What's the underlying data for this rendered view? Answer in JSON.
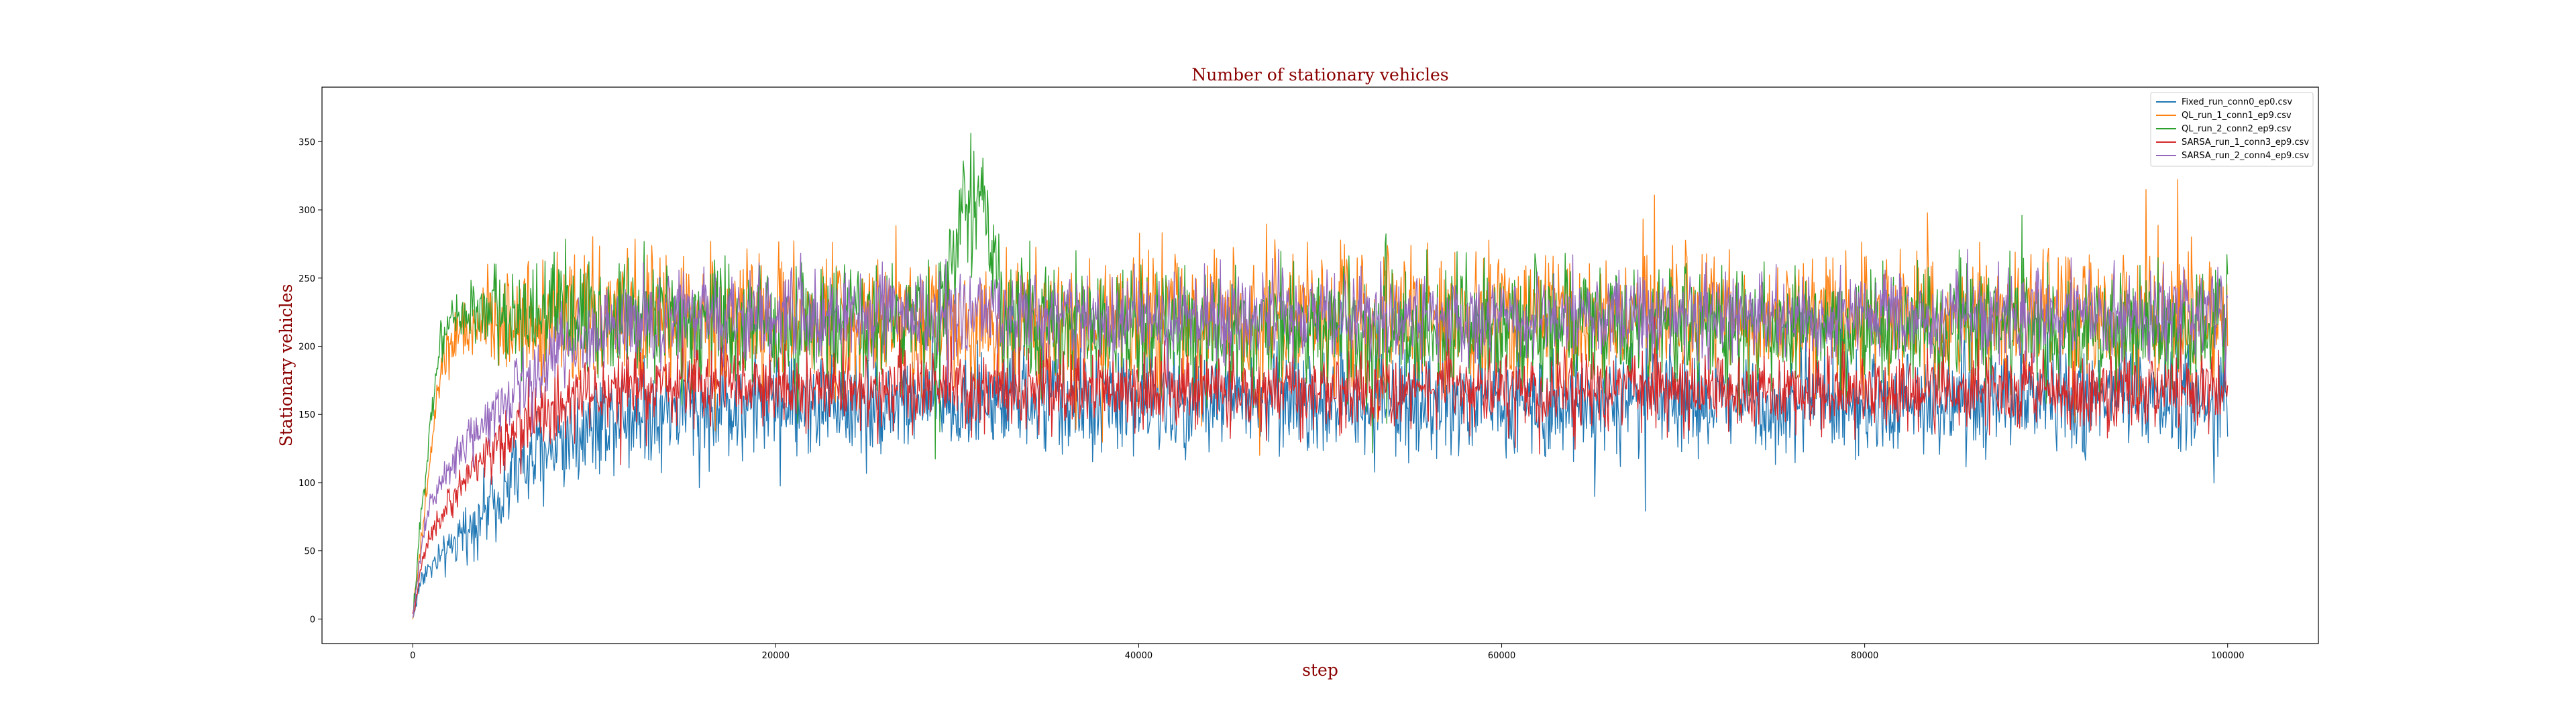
{
  "chart_data": {
    "type": "line",
    "title": "Number of stationary vehicles",
    "xlabel": "step",
    "ylabel": "Stationary vehicles",
    "xlim": [
      -5000,
      105000
    ],
    "ylim": [
      -18,
      390
    ],
    "xticks": [
      0,
      20000,
      40000,
      60000,
      80000,
      100000
    ],
    "yticks": [
      0,
      50,
      100,
      150,
      200,
      250,
      300,
      350
    ],
    "grid": false,
    "legend_position": "top-right",
    "series": [
      {
        "name": "Fixed_run_conn0_ep0.csv",
        "color": "#1f77b4",
        "values": [
          [
            0,
            0
          ],
          [
            500,
            32
          ],
          [
            1000,
            38
          ],
          [
            2000,
            50
          ],
          [
            3000,
            65
          ],
          [
            4000,
            80
          ],
          [
            5000,
            95
          ],
          [
            6000,
            110
          ],
          [
            7000,
            120
          ],
          [
            8000,
            130
          ],
          [
            10000,
            145
          ],
          [
            12000,
            152
          ],
          [
            15000,
            155
          ],
          [
            20000,
            158
          ],
          [
            30000,
            160
          ],
          [
            40000,
            160
          ],
          [
            50000,
            160
          ],
          [
            60000,
            160
          ],
          [
            70000,
            160
          ],
          [
            80000,
            160
          ],
          [
            90000,
            160
          ],
          [
            100000,
            160
          ]
        ],
        "noise": 55
      },
      {
        "name": "QL_run_1_conn1_ep9.csv",
        "color": "#ff7f0e",
        "values": [
          [
            0,
            0
          ],
          [
            500,
            60
          ],
          [
            1000,
            120
          ],
          [
            1500,
            180
          ],
          [
            2000,
            200
          ],
          [
            3000,
            210
          ],
          [
            4000,
            215
          ],
          [
            5000,
            218
          ],
          [
            7000,
            220
          ],
          [
            10000,
            220
          ],
          [
            15000,
            222
          ],
          [
            20000,
            220
          ],
          [
            30000,
            220
          ],
          [
            40000,
            220
          ],
          [
            50000,
            220
          ],
          [
            60000,
            220
          ],
          [
            70000,
            220
          ],
          [
            80000,
            220
          ],
          [
            90000,
            220
          ],
          [
            100000,
            220
          ]
        ],
        "noise": 70
      },
      {
        "name": "QL_run_2_conn2_ep9.csv",
        "color": "#2ca02c",
        "values": [
          [
            0,
            0
          ],
          [
            500,
            80
          ],
          [
            1000,
            150
          ],
          [
            1500,
            200
          ],
          [
            2000,
            220
          ],
          [
            3000,
            225
          ],
          [
            5000,
            225
          ],
          [
            8000,
            225
          ],
          [
            10000,
            222
          ],
          [
            15000,
            220
          ],
          [
            20000,
            215
          ],
          [
            25000,
            215
          ],
          [
            29000,
            220
          ],
          [
            30500,
            310
          ],
          [
            31500,
            300
          ],
          [
            32500,
            220
          ],
          [
            40000,
            212
          ],
          [
            50000,
            212
          ],
          [
            60000,
            212
          ],
          [
            70000,
            215
          ],
          [
            80000,
            212
          ],
          [
            90000,
            212
          ],
          [
            100000,
            215
          ]
        ],
        "noise": 65
      },
      {
        "name": "SARSA_run_1_conn3_ep9.csv",
        "color": "#d62728",
        "values": [
          [
            0,
            0
          ],
          [
            500,
            40
          ],
          [
            1000,
            60
          ],
          [
            2000,
            85
          ],
          [
            3000,
            105
          ],
          [
            4000,
            120
          ],
          [
            5000,
            132
          ],
          [
            6000,
            142
          ],
          [
            8000,
            155
          ],
          [
            10000,
            165
          ],
          [
            12000,
            170
          ],
          [
            15000,
            172
          ],
          [
            20000,
            170
          ],
          [
            30000,
            168
          ],
          [
            40000,
            168
          ],
          [
            50000,
            167
          ],
          [
            60000,
            167
          ],
          [
            70000,
            167
          ],
          [
            80000,
            167
          ],
          [
            90000,
            167
          ],
          [
            100000,
            167
          ]
        ],
        "noise": 40
      },
      {
        "name": "SARSA_run_2_conn4_ep9.csv",
        "color": "#9467bd",
        "values": [
          [
            0,
            0
          ],
          [
            500,
            55
          ],
          [
            1000,
            85
          ],
          [
            2000,
            110
          ],
          [
            3000,
            130
          ],
          [
            4000,
            148
          ],
          [
            5000,
            162
          ],
          [
            6000,
            175
          ],
          [
            8000,
            195
          ],
          [
            10000,
            210
          ],
          [
            12000,
            218
          ],
          [
            15000,
            222
          ],
          [
            20000,
            222
          ],
          [
            30000,
            222
          ],
          [
            40000,
            222
          ],
          [
            50000,
            222
          ],
          [
            60000,
            222
          ],
          [
            70000,
            222
          ],
          [
            80000,
            222
          ],
          [
            90000,
            222
          ],
          [
            100000,
            222
          ]
        ],
        "noise": 45
      }
    ]
  }
}
